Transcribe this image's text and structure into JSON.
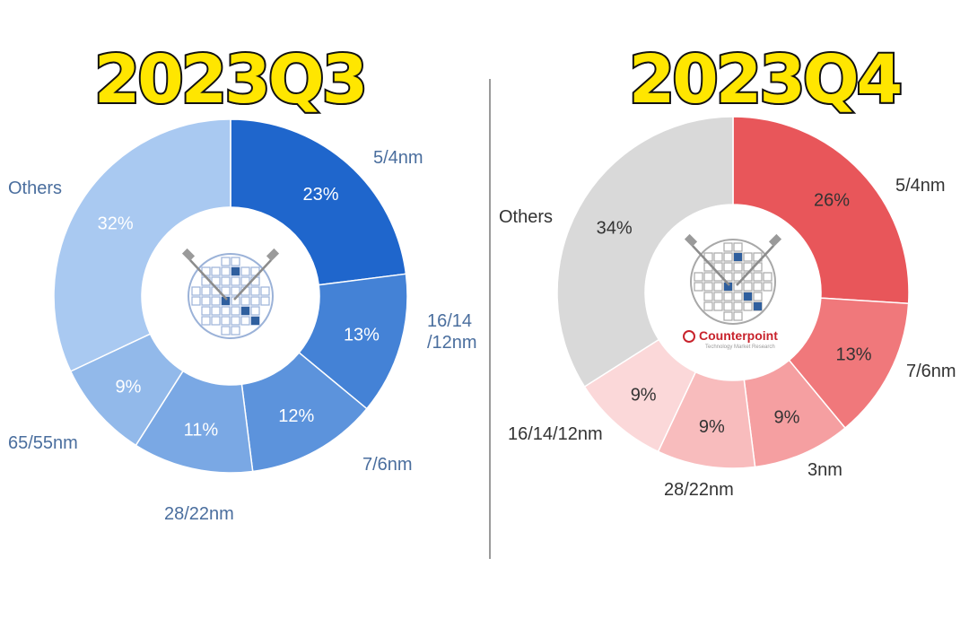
{
  "chart_data": [
    {
      "type": "donut",
      "title": "2023Q3",
      "color_theme": "blue",
      "series": [
        {
          "category": "5/4nm",
          "value": 23,
          "label": "23%",
          "color": "#1f66cc",
          "text_color": "#ffffff"
        },
        {
          "category": "16/14\n/12nm",
          "value": 13,
          "label": "13%",
          "color": "#4482d6",
          "text_color": "#ffffff"
        },
        {
          "category": "7/6nm",
          "value": 12,
          "label": "12%",
          "color": "#5c93dc",
          "text_color": "#ffffff"
        },
        {
          "category": "28/22nm",
          "value": 11,
          "label": "11%",
          "color": "#7aa8e4",
          "text_color": "#ffffff"
        },
        {
          "category": "65/55nm",
          "value": 9,
          "label": "9%",
          "color": "#92b9ea",
          "text_color": "#ffffff"
        },
        {
          "category": "Others",
          "value": 32,
          "label": "32%",
          "color": "#a9c9f1",
          "text_color": "#ffffff"
        }
      ]
    },
    {
      "type": "donut",
      "title": "2023Q4",
      "color_theme": "red",
      "watermark": "Counterpoint",
      "watermark_sub": "Technology Market Research",
      "series": [
        {
          "category": "5/4nm",
          "value": 26,
          "label": "26%",
          "color": "#e8565a",
          "text_color": "#333333"
        },
        {
          "category": "7/6nm",
          "value": 13,
          "label": "13%",
          "color": "#f0787b",
          "text_color": "#333333"
        },
        {
          "category": "3nm",
          "value": 9,
          "label": "9%",
          "color": "#f59fa1",
          "text_color": "#333333"
        },
        {
          "category": "28/22nm",
          "value": 9,
          "label": "9%",
          "color": "#f8bcbd",
          "text_color": "#333333"
        },
        {
          "category": "16/14/12nm",
          "value": 9,
          "label": "9%",
          "color": "#fbd8d9",
          "text_color": "#333333"
        },
        {
          "category": "Others",
          "value": 34,
          "label": "34%",
          "color": "#d9d9d9",
          "text_color": "#333333"
        }
      ]
    }
  ],
  "colors": {
    "title_fill": "#ffe600",
    "title_stroke": "#111111",
    "wafer_stroke": "#9bb2d8",
    "wafer_accent": "#2f5f9e"
  }
}
